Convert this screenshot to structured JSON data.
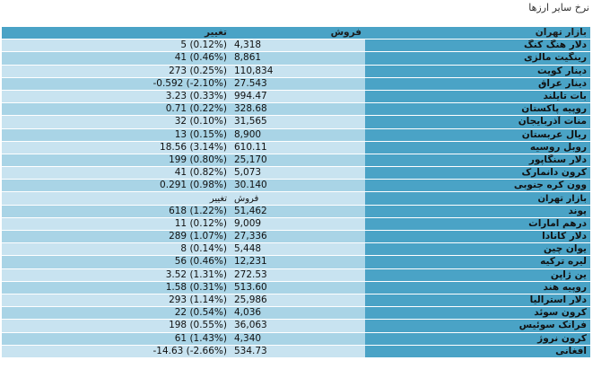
{
  "page_title": "نرخ سایر ارزها",
  "header": {
    "change": "تغییر",
    "sell": "فروش",
    "name": "بازار تهران"
  },
  "group1": [
    {
      "name": "دلار هنگ کنگ",
      "sell": "4,318",
      "change": "5 (0.12%)"
    },
    {
      "name": "رینگیت مالزی",
      "sell": "8,861",
      "change": "41 (0.46%)"
    },
    {
      "name": "دینار کویت",
      "sell": "110,834",
      "change": "273 (0.25%)"
    },
    {
      "name": "دینار عراق",
      "sell": "27.543",
      "change": "-0.592 (-2.10%)"
    },
    {
      "name": "بات تایلند",
      "sell": "994.47",
      "change": "3.23 (0.33%)"
    },
    {
      "name": "روپیه پاکستان",
      "sell": "328.68",
      "change": "0.71 (0.22%)"
    },
    {
      "name": "منات آذربایجان",
      "sell": "31,565",
      "change": "32 (0.10%)"
    },
    {
      "name": "ریال عربستان",
      "sell": "8,900",
      "change": "13 (0.15%)"
    },
    {
      "name": "روبل روسیه",
      "sell": "610.11",
      "change": "18.56 (3.14%)"
    },
    {
      "name": "دلار سنگاپور",
      "sell": "25,170",
      "change": "199 (0.80%)"
    },
    {
      "name": "کرون دانمارک",
      "sell": "5,073",
      "change": "41 (0.82%)"
    },
    {
      "name": "وون کره جنوبی",
      "sell": "30.140",
      "change": "0.291 (0.98%)"
    }
  ],
  "subheader": {
    "change": "تغییر",
    "sell": "فروش",
    "name": "بازار تهران"
  },
  "group2": [
    {
      "name": "پوند",
      "sell": "51,462",
      "change": "618 (1.22%)"
    },
    {
      "name": "درهم امارات",
      "sell": "9,009",
      "change": "11 (0.12%)"
    },
    {
      "name": "دلار کانادا",
      "sell": "27,336",
      "change": "289 (1.07%)"
    },
    {
      "name": "یوان چین",
      "sell": "5,448",
      "change": "8 (0.14%)"
    },
    {
      "name": "لیره ترکیه",
      "sell": "12,231",
      "change": "56 (0.46%)"
    },
    {
      "name": "ین ژاپن",
      "sell": "272.53",
      "change": "3.52 (1.31%)"
    },
    {
      "name": "روپیه هند",
      "sell": "513.60",
      "change": "1.58 (0.31%)"
    },
    {
      "name": "دلار استرالیا",
      "sell": "25,986",
      "change": "293 (1.14%)"
    },
    {
      "name": "کرون سوئد",
      "sell": "4,036",
      "change": "22 (0.54%)"
    },
    {
      "name": "فرانک سوئیس",
      "sell": "36,063",
      "change": "198 (0.55%)"
    },
    {
      "name": "کرون نروژ",
      "sell": "4,340",
      "change": "61 (1.43%)"
    },
    {
      "name": "افغانی",
      "sell": "534.73",
      "change": "-14.63 (-2.66%)"
    }
  ]
}
